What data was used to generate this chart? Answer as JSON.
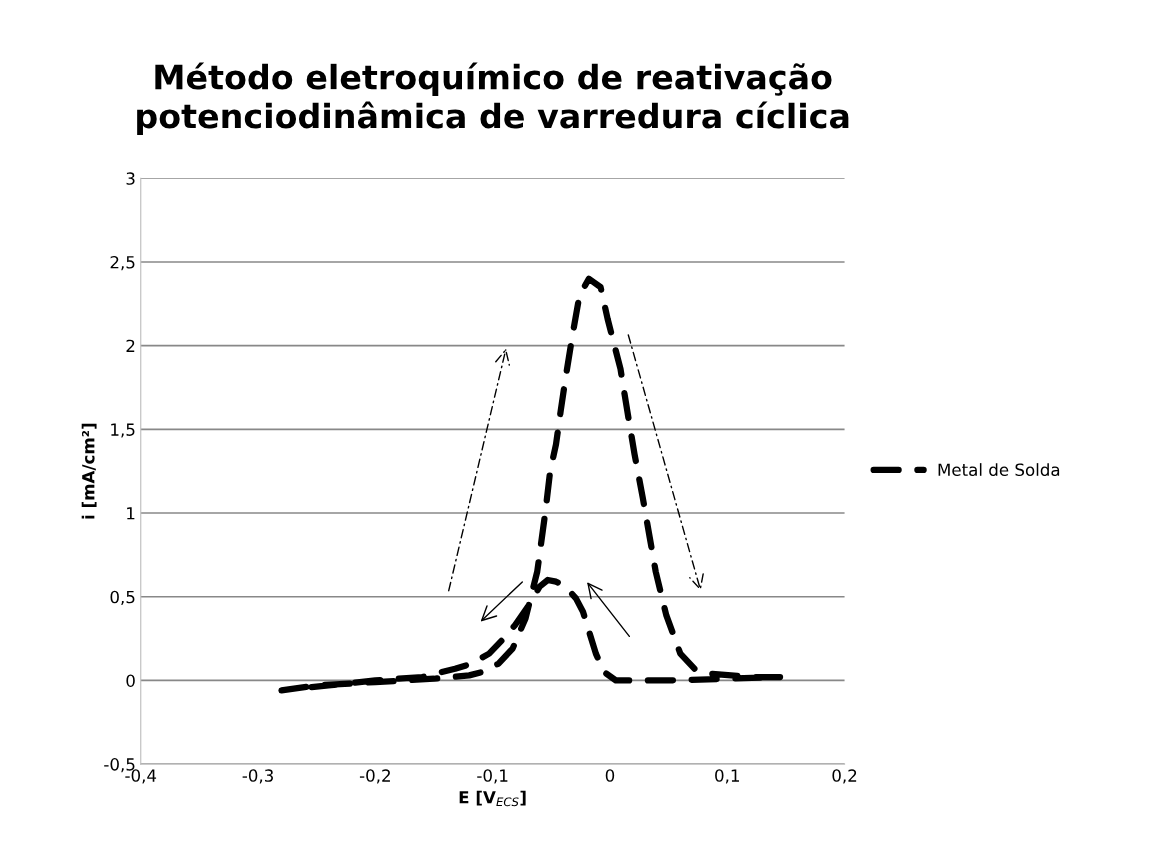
{
  "chart_data": {
    "type": "line",
    "title": "Método eletroquímico de reativação potenciodinâmica de varredura cíclica",
    "xlabel": "E [V$_{ECS}$]",
    "ylabel": "i [mA/cm²]",
    "xlim": [
      -0.4,
      0.2
    ],
    "xticks": [
      {
        "value": -0.4,
        "label": "-0,4"
      },
      {
        "value": -0.3,
        "label": "-0,3"
      },
      {
        "value": -0.2,
        "label": "-0,2"
      },
      {
        "value": -0.1,
        "label": "-0,1"
      },
      {
        "value": 0,
        "label": "0"
      },
      {
        "value": 0.1,
        "label": "0,1"
      },
      {
        "value": 0.2,
        "label": "0,2"
      }
    ],
    "ylim": [
      -0.5,
      3
    ],
    "yticks": [
      {
        "value": -0.5,
        "label": "-0,5"
      },
      {
        "value": 0,
        "label": "0"
      },
      {
        "value": 0.5,
        "label": "0,5"
      },
      {
        "value": 1,
        "label": "1"
      },
      {
        "value": 1.5,
        "label": "1,5"
      },
      {
        "value": 2,
        "label": "2"
      },
      {
        "value": 2.5,
        "label": "2,5"
      },
      {
        "value": 3,
        "label": "3"
      }
    ],
    "grid": "y",
    "legend": "right",
    "line_style": "dashed",
    "marker": "none",
    "series": [
      {
        "name": "Metal de Solda",
        "color": "#000000",
        "x": [
          -0.28,
          -0.25,
          -0.2,
          -0.15,
          -0.12,
          -0.109,
          -0.095,
          -0.083,
          -0.072,
          -0.062,
          -0.055,
          -0.051,
          -0.046,
          -0.042,
          -0.038,
          -0.032,
          -0.026,
          -0.018,
          -0.008,
          -0.002,
          0.009,
          0.015,
          0.021,
          0.028,
          0.034,
          0.039,
          0.048,
          0.06,
          0.072,
          0.086,
          0.12,
          0.145,
          0.1,
          0.05,
          0.02,
          0.005,
          -0.005,
          -0.012,
          -0.023,
          -0.029,
          -0.038,
          -0.046,
          -0.053,
          -0.06,
          -0.069,
          -0.081,
          -0.092,
          -0.103,
          -0.118,
          -0.132,
          -0.16,
          -0.2,
          -0.24,
          -0.27
        ],
        "values": [
          -0.06,
          -0.03,
          -0.01,
          0.01,
          0.03,
          0.05,
          0.1,
          0.19,
          0.37,
          0.65,
          1.01,
          1.25,
          1.41,
          1.61,
          1.8,
          2.06,
          2.3,
          2.4,
          2.35,
          2.16,
          1.86,
          1.6,
          1.35,
          1.09,
          0.85,
          0.65,
          0.39,
          0.16,
          0.07,
          0.04,
          0.02,
          0.02,
          0.01,
          0.0,
          0.0,
          0.0,
          0.05,
          0.16,
          0.41,
          0.49,
          0.56,
          0.59,
          0.6,
          0.56,
          0.45,
          0.33,
          0.24,
          0.16,
          0.1,
          0.07,
          0.02,
          0.0,
          -0.03,
          -0.05
        ]
      }
    ]
  }
}
